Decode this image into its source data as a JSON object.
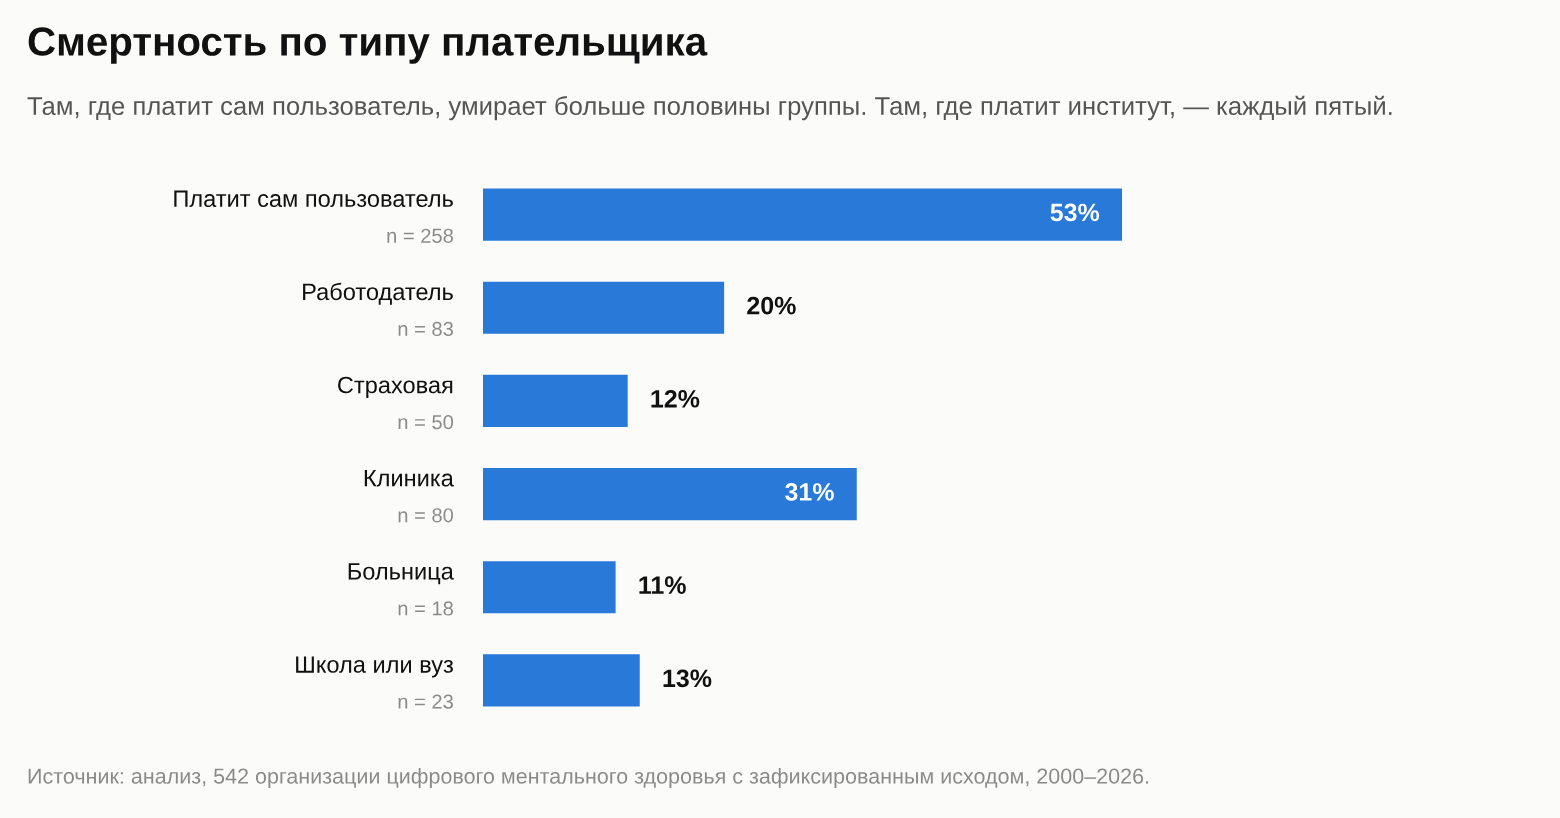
{
  "chart_data": {
    "type": "bar",
    "orientation": "horizontal",
    "title": "Смертность по типу плательщика",
    "subtitle": "Там, где платит сам пользователь, умирает больше половины группы. Там, где платит институт, — каждый пятый.",
    "categories": [
      "Платит сам пользователь\nn = 258",
      "Работодатель\nn = 83",
      "Страховая\nn = 50",
      "Клиника\nn = 80",
      "Больница\nn = 18",
      "Школа или вуз\nn = 23"
    ],
    "values": [
      53,
      20,
      12,
      31,
      11,
      13
    ],
    "value_labels": [
      "53%",
      "20%",
      "12%",
      "31%",
      "11%",
      "13%"
    ],
    "color": "#2979d9",
    "annotations": [
      "Источник: анализ, 542 организации цифрового ментального здоровья с зафиксированным исходом, 2000–2026."
    ]
  }
}
